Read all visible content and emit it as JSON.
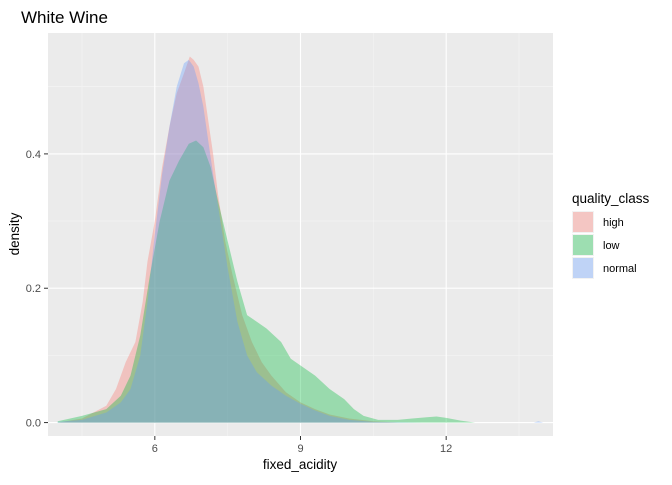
{
  "chart_data": {
    "type": "area",
    "title": "White Wine",
    "xlabel": "fixed_acidity",
    "ylabel": "density",
    "xlim": [
      3.8,
      14.2
    ],
    "ylim": [
      -0.02,
      0.58
    ],
    "x_ticks": [
      6,
      9,
      12
    ],
    "y_ticks": [
      0.0,
      0.2,
      0.4
    ],
    "y_tick_labels": [
      "0.0",
      "0.2",
      "0.4"
    ],
    "grid": true,
    "legend": {
      "title": "quality_class",
      "position": "right"
    },
    "series": [
      {
        "name": "high",
        "color": "#F8766D",
        "points": [
          [
            4.0,
            0.0
          ],
          [
            4.5,
            0.006
          ],
          [
            5.0,
            0.025
          ],
          [
            5.2,
            0.05
          ],
          [
            5.4,
            0.09
          ],
          [
            5.6,
            0.12
          ],
          [
            5.75,
            0.18
          ],
          [
            5.85,
            0.24
          ],
          [
            6.0,
            0.3
          ],
          [
            6.15,
            0.38
          ],
          [
            6.3,
            0.44
          ],
          [
            6.45,
            0.49
          ],
          [
            6.6,
            0.52
          ],
          [
            6.72,
            0.545
          ],
          [
            6.8,
            0.54
          ],
          [
            6.9,
            0.53
          ],
          [
            7.0,
            0.5
          ],
          [
            7.1,
            0.45
          ],
          [
            7.2,
            0.4
          ],
          [
            7.3,
            0.34
          ],
          [
            7.45,
            0.27
          ],
          [
            7.6,
            0.22
          ],
          [
            7.8,
            0.16
          ],
          [
            8.0,
            0.12
          ],
          [
            8.2,
            0.09
          ],
          [
            8.4,
            0.07
          ],
          [
            8.7,
            0.045
          ],
          [
            9.0,
            0.03
          ],
          [
            9.3,
            0.02
          ],
          [
            9.6,
            0.012
          ],
          [
            10.0,
            0.006
          ],
          [
            10.5,
            0.002
          ],
          [
            11.0,
            0.0
          ]
        ]
      },
      {
        "name": "low",
        "color": "#00BA38",
        "points": [
          [
            4.0,
            0.002
          ],
          [
            4.5,
            0.01
          ],
          [
            5.0,
            0.02
          ],
          [
            5.3,
            0.04
          ],
          [
            5.5,
            0.07
          ],
          [
            5.7,
            0.13
          ],
          [
            5.9,
            0.22
          ],
          [
            6.1,
            0.3
          ],
          [
            6.3,
            0.36
          ],
          [
            6.5,
            0.39
          ],
          [
            6.7,
            0.415
          ],
          [
            6.85,
            0.42
          ],
          [
            7.0,
            0.41
          ],
          [
            7.15,
            0.38
          ],
          [
            7.3,
            0.33
          ],
          [
            7.5,
            0.27
          ],
          [
            7.7,
            0.21
          ],
          [
            7.9,
            0.16
          ],
          [
            8.1,
            0.15
          ],
          [
            8.3,
            0.14
          ],
          [
            8.6,
            0.12
          ],
          [
            8.8,
            0.095
          ],
          [
            9.0,
            0.085
          ],
          [
            9.3,
            0.07
          ],
          [
            9.6,
            0.05
          ],
          [
            9.9,
            0.035
          ],
          [
            10.1,
            0.02
          ],
          [
            10.3,
            0.01
          ],
          [
            10.6,
            0.004
          ],
          [
            11.0,
            0.004
          ],
          [
            11.3,
            0.006
          ],
          [
            11.6,
            0.008
          ],
          [
            11.8,
            0.009
          ],
          [
            12.0,
            0.007
          ],
          [
            12.3,
            0.003
          ],
          [
            12.6,
            0.0
          ]
        ]
      },
      {
        "name": "normal",
        "color": "#619CFF",
        "points": [
          [
            4.0,
            0.001
          ],
          [
            4.5,
            0.004
          ],
          [
            5.0,
            0.015
          ],
          [
            5.3,
            0.03
          ],
          [
            5.5,
            0.05
          ],
          [
            5.7,
            0.1
          ],
          [
            5.85,
            0.18
          ],
          [
            6.0,
            0.28
          ],
          [
            6.15,
            0.37
          ],
          [
            6.3,
            0.44
          ],
          [
            6.45,
            0.5
          ],
          [
            6.6,
            0.535
          ],
          [
            6.7,
            0.54
          ],
          [
            6.8,
            0.53
          ],
          [
            6.9,
            0.505
          ],
          [
            7.0,
            0.47
          ],
          [
            7.1,
            0.42
          ],
          [
            7.2,
            0.37
          ],
          [
            7.35,
            0.3
          ],
          [
            7.5,
            0.23
          ],
          [
            7.7,
            0.15
          ],
          [
            7.9,
            0.1
          ],
          [
            8.1,
            0.075
          ],
          [
            8.4,
            0.055
          ],
          [
            8.7,
            0.04
          ],
          [
            9.0,
            0.028
          ],
          [
            9.3,
            0.018
          ],
          [
            9.6,
            0.01
          ],
          [
            10.0,
            0.004
          ],
          [
            10.5,
            0.001
          ],
          [
            11.5,
            0.0
          ],
          [
            13.8,
            0.0
          ],
          [
            13.9,
            0.002
          ],
          [
            14.0,
            0.0
          ]
        ]
      }
    ]
  }
}
